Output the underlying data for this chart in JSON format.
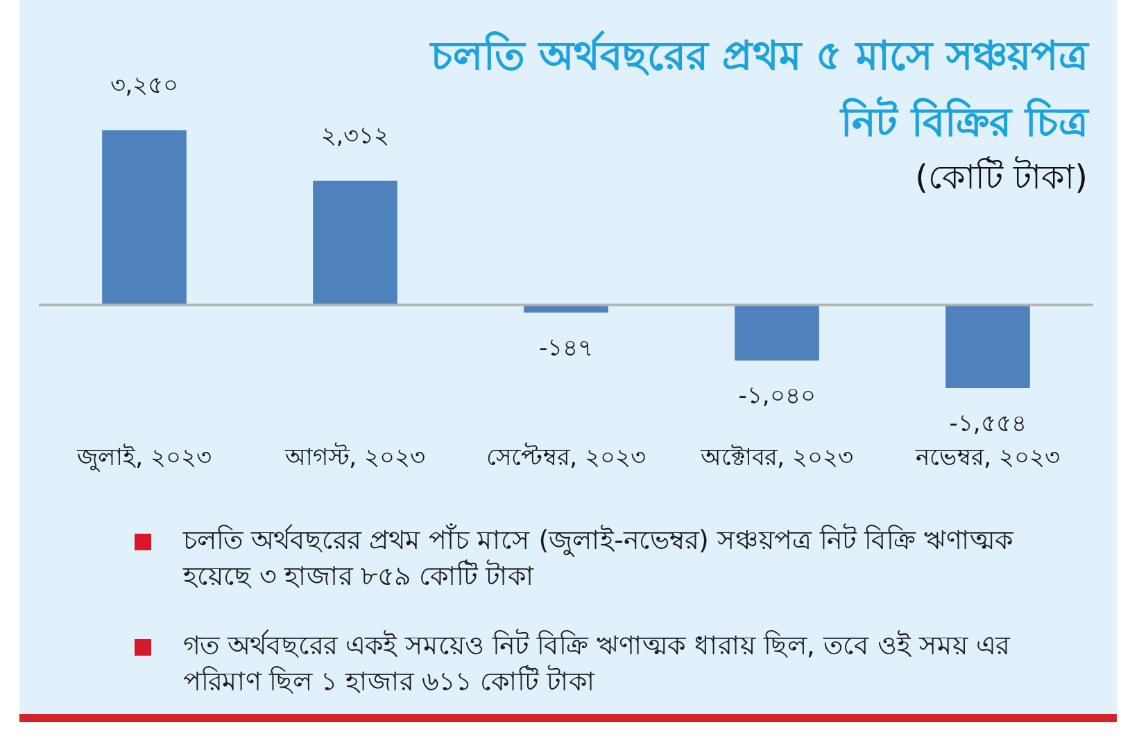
{
  "chart_data": {
    "type": "bar",
    "title": "চলতি অর্থবছরের প্রথম ৫ মাসে সঞ্চয়পত্র নিট বিক্রির চিত্র",
    "subtitle": "(কোটি টাকা)",
    "categories": [
      "জুলাই, ২০২৩",
      "আগস্ট, ২০২৩",
      "সেপ্টেম্বর, ২০২৩",
      "অক্টোবর, ২০২৩",
      "নভেম্বর, ২০২৩"
    ],
    "values": [
      3250,
      2312,
      -147,
      -1040,
      -1554
    ],
    "color": "#4f81bd",
    "value_labels": [
      "৩,২৫০",
      "২,৩১২",
      "-১৪৭",
      "-১,০৪০",
      "-১,৫৫৪"
    ],
    "annotations": [
      "চলতি অর্থবছরের প্রথম পাঁচ মাসে (জুলাই-নভেম্বর) সঞ্চয়পত্র নিট বিক্রি ঋণাত্মক হয়েছে ৩ হাজার ৮৫৯ কোটি টাকা",
      "গত অর্থবছরের একই সময়েও নিট বিক্রি ঋণাত্মক ধারায় ছিল, তবে ওই সময় এর পরিমাণ ছিল ১ হাজার ৬১১ কোটি টাকা"
    ]
  }
}
